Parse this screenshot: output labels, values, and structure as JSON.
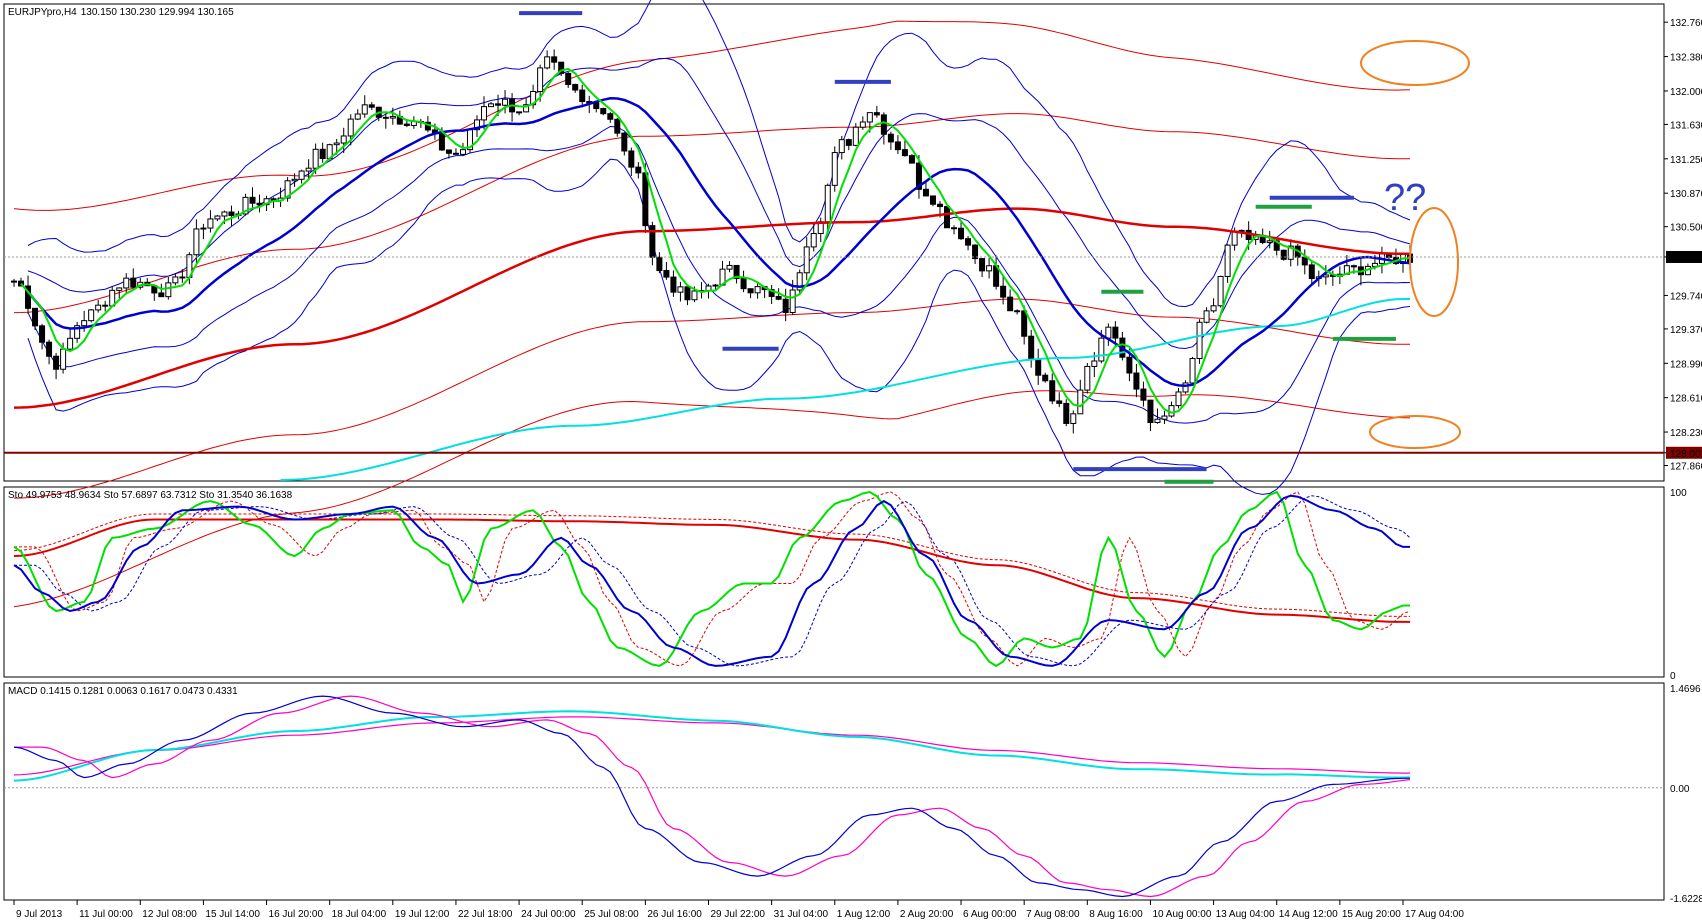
{
  "header": {
    "symbol": "EURJPYpro,H4",
    "ohlc": "130.150 130.230 129.994 130.165",
    "stoch_text": "Sto 49.9753 48.9634  Sto 57.6897 63.7312  Sto 31.3540 36.1638",
    "macd_text": "MACD 0.1415 0.1281 0.0063 0.1617 0.0473 0.4331"
  },
  "colors": {
    "green": "#00e000",
    "blue": "#0000d0",
    "red": "#e00000",
    "cyan": "#00e0e0",
    "magenta": "#ff00c0",
    "orange": "#f08020",
    "annot_blue": "#3040c0",
    "annot_green": "#20a040",
    "level_line": "#800000"
  },
  "price_pane": {
    "y_range": [
      127.7,
      132.95
    ],
    "y_ticks": [
      "132.760",
      "132.380",
      "132.000",
      "131.630",
      "131.250",
      "130.870",
      "130.500",
      "130.165",
      "129.740",
      "129.370",
      "128.990",
      "128.610",
      "128.230",
      "128.001",
      "127.860"
    ],
    "current_price": "130.165",
    "level_price": "128.001",
    "annotation_text": "??"
  },
  "stoch_pane": {
    "y_range": [
      0,
      100
    ],
    "y_ticks": [
      "100",
      "0"
    ]
  },
  "macd_pane": {
    "y_range": [
      -1.6228,
      1.4696
    ],
    "y_ticks": [
      "1.4696",
      "0.00",
      "-1.6228"
    ]
  },
  "x_axis": {
    "labels": [
      "9 Jul 2013",
      "11 Jul 00:00",
      "12 Jul 08:00",
      "15 Jul 14:00",
      "16 Jul 20:00",
      "18 Jul 04:00",
      "19 Jul 12:00",
      "22 Jul 18:00",
      "24 Jul 00:00",
      "25 Jul 08:00",
      "26 Jul 16:00",
      "29 Jul 22:00",
      "31 Jul 04:00",
      "1 Aug 12:00",
      "2 Aug 20:00",
      "6 Aug 00:00",
      "7 Aug 08:00",
      "8 Aug 16:00",
      "10 Aug 00:00",
      "13 Aug 04:00",
      "14 Aug 12:00",
      "15 Aug 20:00",
      "17 Aug 04:00"
    ]
  },
  "chart_data": {
    "type": "line",
    "title": "EURJPYpro,H4",
    "x_label_positions": [
      0,
      9,
      18,
      27,
      36,
      45,
      54,
      63,
      72,
      81,
      90,
      99,
      108,
      117,
      126,
      135,
      144,
      153,
      162,
      171,
      180,
      189,
      198
    ],
    "close_keypoints": [
      [
        0,
        129.9
      ],
      [
        6,
        129.0
      ],
      [
        10,
        129.5
      ],
      [
        16,
        129.9
      ],
      [
        22,
        129.8
      ],
      [
        28,
        130.6
      ],
      [
        36,
        130.8
      ],
      [
        44,
        131.3
      ],
      [
        50,
        131.8
      ],
      [
        56,
        131.7
      ],
      [
        63,
        131.3
      ],
      [
        68,
        131.9
      ],
      [
        73,
        131.8
      ],
      [
        76,
        132.3
      ],
      [
        80,
        132.0
      ],
      [
        84,
        131.8
      ],
      [
        88,
        131.2
      ],
      [
        92,
        130.0
      ],
      [
        96,
        129.7
      ],
      [
        102,
        130.0
      ],
      [
        106,
        129.8
      ],
      [
        110,
        129.6
      ],
      [
        114,
        130.5
      ],
      [
        118,
        131.4
      ],
      [
        122,
        131.8
      ],
      [
        126,
        131.4
      ],
      [
        130,
        130.9
      ],
      [
        134,
        130.5
      ],
      [
        138,
        130.1
      ],
      [
        142,
        129.6
      ],
      [
        146,
        128.9
      ],
      [
        150,
        128.4
      ],
      [
        154,
        129.1
      ],
      [
        156,
        129.4
      ],
      [
        160,
        128.7
      ],
      [
        163,
        128.3
      ],
      [
        166,
        128.6
      ],
      [
        170,
        129.5
      ],
      [
        174,
        130.4
      ],
      [
        178,
        130.3
      ],
      [
        182,
        130.2
      ],
      [
        186,
        129.9
      ],
      [
        190,
        130.0
      ],
      [
        194,
        130.1
      ],
      [
        198,
        130.165
      ]
    ],
    "ma_slow_keypoints": [
      [
        0,
        128.5
      ],
      [
        40,
        129.2
      ],
      [
        90,
        130.45
      ],
      [
        120,
        130.55
      ],
      [
        143,
        130.7
      ],
      [
        165,
        130.5
      ],
      [
        198,
        130.2
      ]
    ],
    "ma_long_keypoints": [
      [
        38,
        127.7
      ],
      [
        80,
        128.3
      ],
      [
        110,
        128.6
      ],
      [
        150,
        129.05
      ],
      [
        180,
        129.4
      ],
      [
        198,
        129.7
      ]
    ],
    "stoch_green_keypoints": [
      [
        0,
        70
      ],
      [
        6,
        35
      ],
      [
        10,
        40
      ],
      [
        14,
        75
      ],
      [
        20,
        80
      ],
      [
        28,
        95
      ],
      [
        34,
        82
      ],
      [
        40,
        65
      ],
      [
        44,
        80
      ],
      [
        48,
        88
      ],
      [
        54,
        90
      ],
      [
        58,
        70
      ],
      [
        62,
        60
      ],
      [
        64,
        40
      ],
      [
        68,
        80
      ],
      [
        74,
        90
      ],
      [
        78,
        70
      ],
      [
        82,
        40
      ],
      [
        86,
        15
      ],
      [
        92,
        5
      ],
      [
        98,
        35
      ],
      [
        104,
        50
      ],
      [
        108,
        50
      ],
      [
        112,
        75
      ],
      [
        118,
        95
      ],
      [
        122,
        100
      ],
      [
        126,
        85
      ],
      [
        130,
        55
      ],
      [
        136,
        20
      ],
      [
        140,
        5
      ],
      [
        144,
        20
      ],
      [
        148,
        15
      ],
      [
        152,
        20
      ],
      [
        156,
        75
      ],
      [
        160,
        35
      ],
      [
        164,
        10
      ],
      [
        168,
        40
      ],
      [
        172,
        70
      ],
      [
        176,
        90
      ],
      [
        180,
        100
      ],
      [
        184,
        60
      ],
      [
        188,
        30
      ],
      [
        192,
        25
      ],
      [
        196,
        35
      ],
      [
        198,
        38
      ]
    ],
    "stoch_blue_keypoints": [
      [
        0,
        60
      ],
      [
        4,
        45
      ],
      [
        8,
        35
      ],
      [
        12,
        40
      ],
      [
        18,
        70
      ],
      [
        24,
        90
      ],
      [
        32,
        92
      ],
      [
        40,
        85
      ],
      [
        48,
        88
      ],
      [
        54,
        92
      ],
      [
        60,
        75
      ],
      [
        66,
        50
      ],
      [
        72,
        55
      ],
      [
        78,
        75
      ],
      [
        82,
        60
      ],
      [
        88,
        35
      ],
      [
        94,
        15
      ],
      [
        100,
        5
      ],
      [
        108,
        10
      ],
      [
        114,
        50
      ],
      [
        120,
        80
      ],
      [
        124,
        95
      ],
      [
        130,
        65
      ],
      [
        136,
        30
      ],
      [
        142,
        10
      ],
      [
        148,
        5
      ],
      [
        156,
        30
      ],
      [
        164,
        25
      ],
      [
        170,
        45
      ],
      [
        176,
        80
      ],
      [
        182,
        98
      ],
      [
        188,
        90
      ],
      [
        194,
        80
      ],
      [
        198,
        70
      ]
    ],
    "stoch_red_keypoints": [
      [
        0,
        65
      ],
      [
        20,
        85
      ],
      [
        60,
        85
      ],
      [
        80,
        84
      ],
      [
        100,
        82
      ],
      [
        120,
        74
      ],
      [
        140,
        60
      ],
      [
        160,
        42
      ],
      [
        180,
        33
      ],
      [
        198,
        29
      ]
    ],
    "macd_main_keypoints": [
      [
        0,
        0.6
      ],
      [
        6,
        0.4
      ],
      [
        10,
        0.15
      ],
      [
        16,
        0.35
      ],
      [
        24,
        0.7
      ],
      [
        34,
        1.1
      ],
      [
        44,
        1.35
      ],
      [
        54,
        1.1
      ],
      [
        64,
        0.9
      ],
      [
        72,
        1.0
      ],
      [
        78,
        0.8
      ],
      [
        84,
        0.3
      ],
      [
        90,
        -0.6
      ],
      [
        98,
        -1.1
      ],
      [
        106,
        -1.3
      ],
      [
        114,
        -1.0
      ],
      [
        122,
        -0.4
      ],
      [
        128,
        -0.3
      ],
      [
        134,
        -0.6
      ],
      [
        140,
        -1.0
      ],
      [
        146,
        -1.4
      ],
      [
        152,
        -1.5
      ],
      [
        158,
        -1.6
      ],
      [
        166,
        -1.3
      ],
      [
        172,
        -0.8
      ],
      [
        180,
        -0.2
      ],
      [
        188,
        0.05
      ],
      [
        198,
        0.14
      ]
    ],
    "macd_signal_keypoints": [
      [
        0,
        0.1
      ],
      [
        20,
        0.5
      ],
      [
        40,
        0.75
      ],
      [
        60,
        0.95
      ],
      [
        80,
        1.05
      ],
      [
        100,
        0.95
      ],
      [
        120,
        0.75
      ],
      [
        140,
        0.5
      ],
      [
        160,
        0.3
      ],
      [
        180,
        0.2
      ],
      [
        198,
        0.13
      ]
    ]
  }
}
